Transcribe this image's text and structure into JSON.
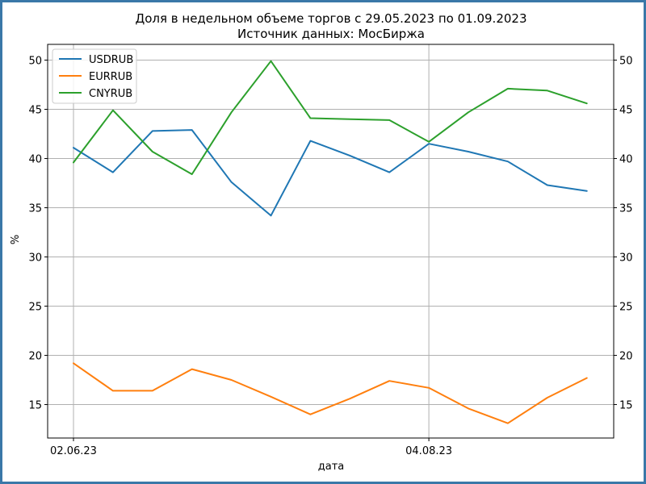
{
  "chart_data": {
    "type": "line",
    "title_line1": "Доля в недельном объеме торгов с 29.05.2023 по 01.09.2023",
    "title_line2": "Источник данных: МосБиржа",
    "xlabel": "дата",
    "ylabel": "%",
    "x": [
      "02.06.23",
      "09.06.23",
      "16.06.23",
      "23.06.23",
      "30.06.23",
      "07.07.23",
      "14.07.23",
      "21.07.23",
      "28.07.23",
      "04.08.23",
      "11.08.23",
      "18.08.23",
      "25.08.23",
      "01.09.23"
    ],
    "x_tick_labels": [
      "02.06.23",
      "04.08.23"
    ],
    "ylim": [
      11.6,
      51.6
    ],
    "y_ticks": [
      15,
      20,
      25,
      30,
      35,
      40,
      45,
      50
    ],
    "grid": "vertical gridlines at date ticks, horizontal gridlines at y ticks",
    "legend_position": "top-left",
    "y_axis_mirrored_right": true,
    "series": [
      {
        "name": "USDRUB",
        "color": "#1f77b4",
        "values": [
          41.1,
          38.6,
          42.8,
          42.9,
          37.6,
          34.2,
          41.8,
          40.3,
          38.6,
          41.5,
          40.7,
          39.7,
          37.3,
          36.7
        ]
      },
      {
        "name": "EURRUB",
        "color": "#ff7f0e",
        "values": [
          19.2,
          16.4,
          16.4,
          18.6,
          17.5,
          15.8,
          14.0,
          15.6,
          17.4,
          16.7,
          14.6,
          13.1,
          15.7,
          17.7
        ]
      },
      {
        "name": "CNYRUB",
        "color": "#2ca02c",
        "values": [
          39.6,
          44.9,
          40.7,
          38.4,
          44.7,
          49.9,
          44.1,
          44.0,
          43.9,
          41.7,
          44.7,
          47.1,
          46.9,
          45.6
        ]
      }
    ]
  }
}
